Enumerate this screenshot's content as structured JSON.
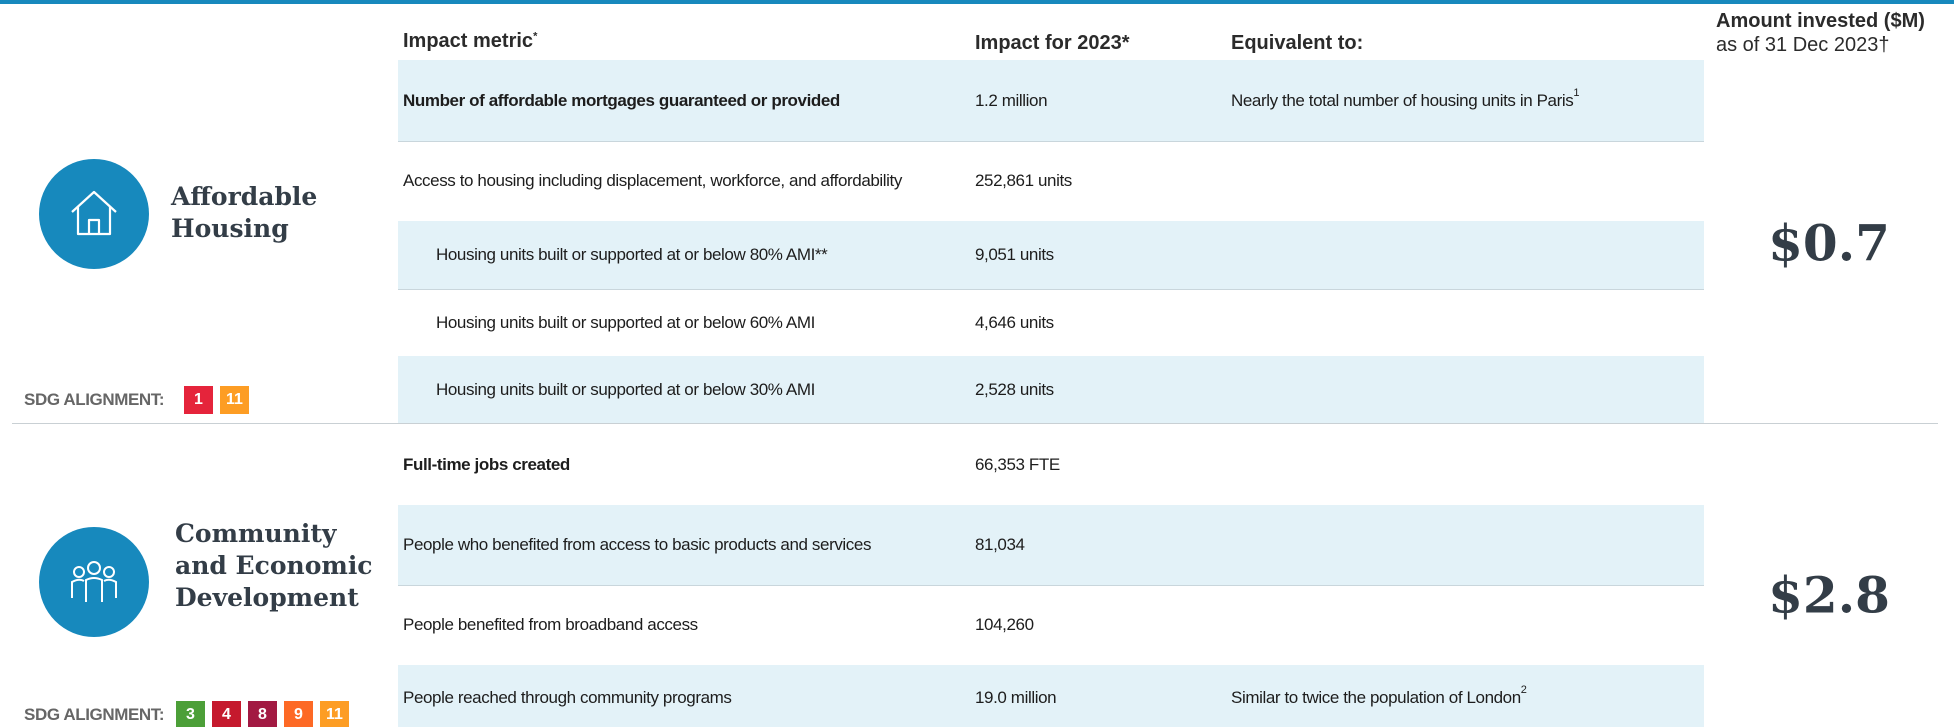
{
  "header": {
    "metric": "Impact metric",
    "metric_note": "*",
    "impact": "Impact for 2023*",
    "equivalent": "Equivalent to:",
    "invested": "Amount invested ($M)",
    "invested_sub": "as of 31 Dec 2023†"
  },
  "sections": [
    {
      "title": "Affordable Housing",
      "amount": "$0.7",
      "sdg_label": "SDG ALIGNMENT:",
      "sdgs": [
        "1",
        "11"
      ],
      "rows": [
        {
          "metric": "Number of affordable mortgages guaranteed or provided",
          "impact": "1.2 million",
          "equivalent": "Nearly the total number of housing units in Paris",
          "note": "1"
        },
        {
          "metric": "Access to housing including displacement, workforce, and affordability",
          "impact": "252,861 units"
        },
        {
          "metric": "Housing units built or supported at or below 80% AMI**",
          "impact": "9,051 units"
        },
        {
          "metric": "Housing units built or supported at or below 60% AMI",
          "impact": "4,646 units"
        },
        {
          "metric": "Housing units built or supported at or below 30% AMI",
          "impact": "2,528 units"
        }
      ]
    },
    {
      "title": "Community and Economic Development",
      "amount": "$2.8",
      "sdg_label": "SDG ALIGNMENT:",
      "sdgs": [
        "3",
        "4",
        "8",
        "9",
        "11"
      ],
      "rows": [
        {
          "metric": "Full-time jobs created",
          "impact": "66,353 FTE"
        },
        {
          "metric": "People who benefited from access to basic products and services",
          "impact": "81,034"
        },
        {
          "metric": "People benefited from broadband access",
          "impact": "104,260"
        },
        {
          "metric": "People reached through community programs",
          "impact": "19.0 million",
          "equivalent": "Similar to twice the population of London",
          "note": "2"
        }
      ]
    }
  ]
}
